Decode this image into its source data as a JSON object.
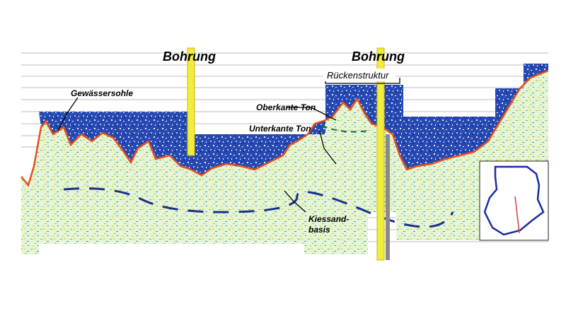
{
  "labels": {
    "borehole_left": "Bohrung",
    "borehole_right": "Bohrung",
    "ridge": "Rückenstruktur",
    "bed": "Gewässersohle",
    "clay_top": "Oberkante Ton",
    "clay_base": "Unterkante Ton",
    "gravel_base": [
      "Kiessand-",
      "basis"
    ]
  }
}
